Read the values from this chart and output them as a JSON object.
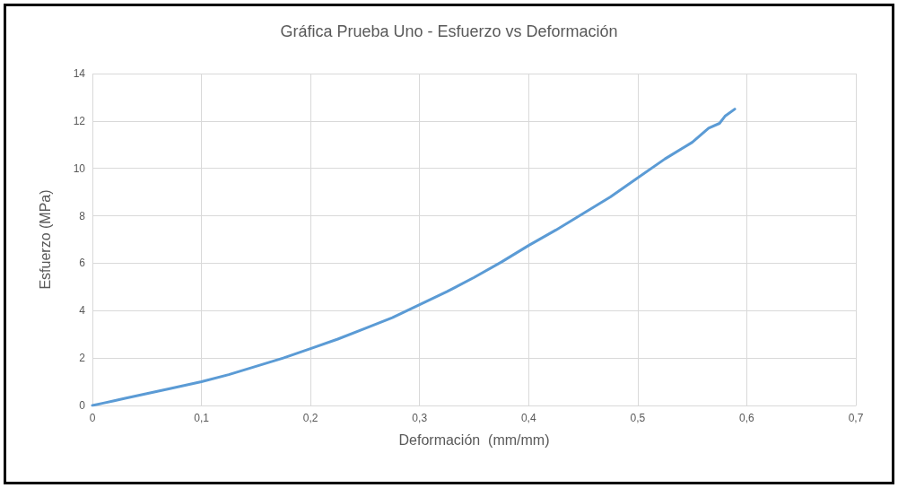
{
  "chart_data": {
    "type": "line",
    "title": "Gráfica Prueba Uno - Esfuerzo vs Deformación",
    "xlabel": "Deformación  (mm/mm)",
    "ylabel": "Esfuerzo (MPa)",
    "x": [
      0,
      0.01,
      0.02,
      0.03,
      0.05,
      0.07,
      0.1,
      0.125,
      0.15,
      0.175,
      0.2,
      0.225,
      0.25,
      0.275,
      0.3,
      0.325,
      0.35,
      0.375,
      0.4,
      0.425,
      0.45,
      0.475,
      0.5,
      0.525,
      0.55,
      0.565,
      0.575,
      0.58,
      0.589
    ],
    "series": [
      {
        "color": "#5b9bd5",
        "values": [
          0,
          0.1,
          0.2,
          0.3,
          0.5,
          0.7,
          1.0,
          1.3,
          1.65,
          2.0,
          2.4,
          2.8,
          3.25,
          3.7,
          4.25,
          4.8,
          5.4,
          6.05,
          6.75,
          7.4,
          8.1,
          8.8,
          9.6,
          10.4,
          11.1,
          11.7,
          11.9,
          12.2,
          12.5
        ]
      }
    ],
    "xlim": [
      0,
      0.7
    ],
    "xticks": [
      0,
      {
        "value": 0.1,
        "label": "0,1"
      },
      {
        "value": 0.2,
        "label": "0,2"
      },
      {
        "value": 0.3,
        "label": "0,3"
      },
      {
        "value": 0.4,
        "label": "0,4"
      },
      {
        "value": 0.5,
        "label": "0,5"
      },
      {
        "value": 0.6,
        "label": "0,6"
      },
      {
        "value": 0.7,
        "label": "0,7"
      }
    ],
    "ylim": [
      0,
      14
    ],
    "yticks": [
      0,
      2,
      4,
      6,
      8,
      10,
      12,
      14
    ],
    "grid": true,
    "marker": "none",
    "line_style": "solid"
  }
}
